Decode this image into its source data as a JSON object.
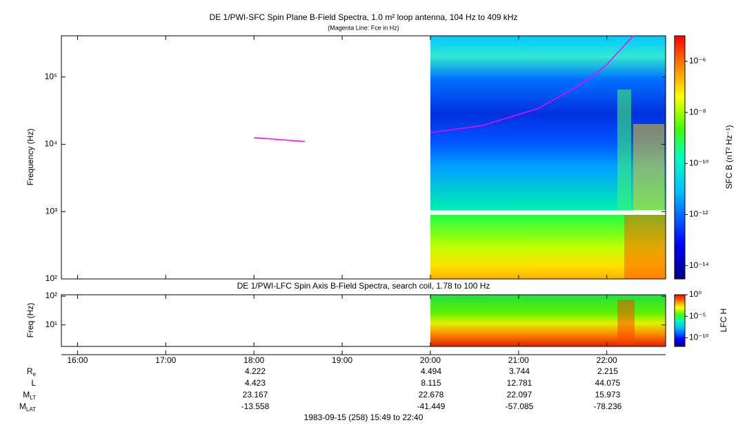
{
  "chart_data": [
    {
      "type": "spectrogram",
      "title": "DE 1/PWI-SFC  Spin Plane B-Field Spectra, 1.0 m² loop antenna, 104 Hz to 409 kHz",
      "subtitle": "(Magenta Line: Fce in Hz)",
      "y_label": "Frequency (Hz)",
      "log_y": true,
      "xlim": [
        15.817,
        22.667
      ],
      "ylim": [
        100,
        409000
      ],
      "yticks": [
        {
          "value": 100,
          "label": "10²"
        },
        {
          "value": 1000,
          "label": "10³"
        },
        {
          "value": 10000,
          "label": "10⁴"
        },
        {
          "value": 100000,
          "label": "10⁵"
        }
      ],
      "series": [
        {
          "color": "#ff00ff",
          "x": [
            18.0,
            18.58,
            null,
            20.0,
            20.59,
            21.22,
            21.68,
            21.99,
            22.3
          ],
          "values": [
            12600,
            11000,
            null,
            14900,
            19000,
            34000,
            74000,
            148000,
            409000
          ]
        }
      ],
      "colorbar_label": "SFC B (nT² Hz⁻¹)",
      "clim": [
        3e-15,
        1e-05
      ],
      "cticks": [
        {
          "value": 1e-06,
          "label": "10⁻⁶"
        },
        {
          "value": 1e-08,
          "label": "10⁻⁸"
        },
        {
          "value": 1e-10,
          "label": "10⁻¹⁰"
        },
        {
          "value": 1e-12,
          "label": "10⁻¹²"
        },
        {
          "value": 1e-14,
          "label": "10⁻¹⁴"
        }
      ],
      "colormap": [
        "#00007f",
        "#0000ff",
        "#00bfff",
        "#00ffbf",
        "#40ff00",
        "#ffff00",
        "#ff8000",
        "#ff0000"
      ]
    },
    {
      "type": "spectrogram",
      "title": "DE 1/PWI-LFC  Spin Axis B-Field Spectra, search coil, 1.78 to 100 Hz",
      "y_label": "Freq (Hz)",
      "log_y": true,
      "xlim": [
        15.817,
        22.667
      ],
      "xticks": [
        {
          "value": 16,
          "label": "16:00"
        },
        {
          "value": 17,
          "label": "17:00"
        },
        {
          "value": 18,
          "label": "18:00"
        },
        {
          "value": 19,
          "label": "19:00"
        },
        {
          "value": 20,
          "label": "20:00"
        },
        {
          "value": 21,
          "label": "21:00"
        },
        {
          "value": 22,
          "label": "22:00"
        }
      ],
      "ylim": [
        1.78,
        112
      ],
      "yticks": [
        {
          "value": 10,
          "label": "10¹"
        },
        {
          "value": 100,
          "label": "10²"
        }
      ],
      "colorbar_label": "LFC H",
      "clim": [
        1e-12,
        1
      ],
      "cticks": [
        {
          "value": 1,
          "label": "10⁰"
        },
        {
          "value": 1e-05,
          "label": "10⁻⁵"
        },
        {
          "value": 1e-10,
          "label": "10⁻¹⁰"
        }
      ],
      "colormap": [
        "#00007f",
        "#0000ff",
        "#00bfff",
        "#00ffbf",
        "#40ff00",
        "#ffff00",
        "#ff8000",
        "#ff0000"
      ]
    }
  ],
  "ephemeris": {
    "rows": [
      {
        "label": "R",
        "sub": "e",
        "values": [
          4.222,
          4.494,
          3.744,
          2.215
        ]
      },
      {
        "label": "L",
        "values": [
          4.423,
          8.115,
          12.781,
          44.075
        ]
      },
      {
        "label": "M",
        "sub": "LT",
        "values": [
          23.167,
          22.678,
          22.097,
          15.973
        ]
      },
      {
        "label": "M",
        "sub": "LAT",
        "values": [
          -13.558,
          -41.449,
          -57.085,
          -78.236
        ]
      }
    ]
  },
  "footer": "1983-09-15 (258) 15:49 to 22:40"
}
